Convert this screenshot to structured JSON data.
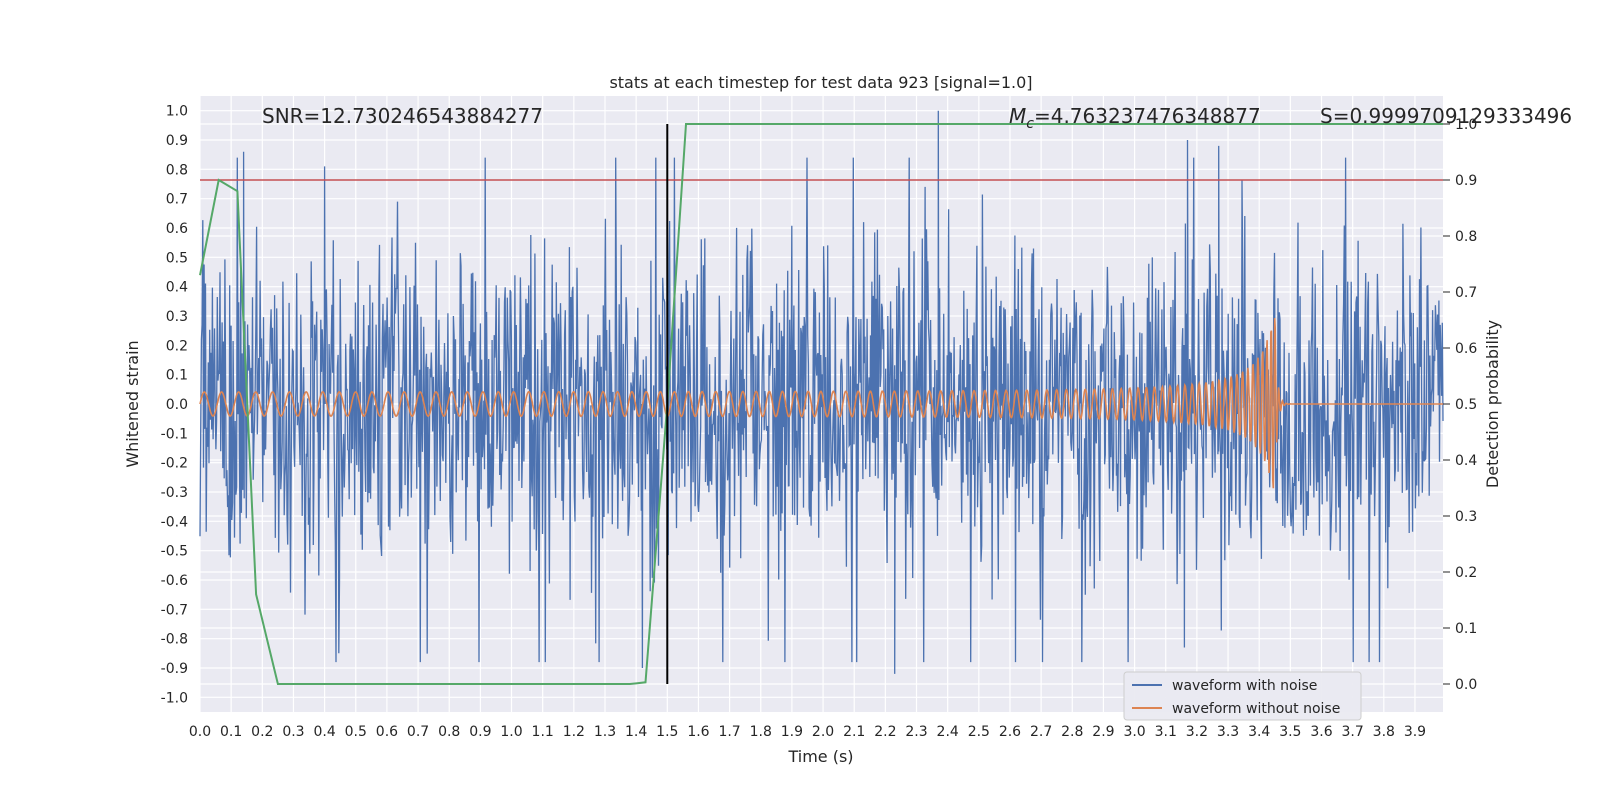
{
  "chart_data": {
    "type": "line",
    "title": "stats at each timestep for test data 923 [signal=1.0]",
    "xlabel": "Time (s)",
    "ylabel": "Whitened strain",
    "y2label": "Detection probability",
    "xlim": [
      0.0,
      3.99
    ],
    "ylim": [
      -1.05,
      1.05
    ],
    "y2lim": [
      -0.05,
      1.05
    ],
    "x_ticks": [
      "0.0",
      "0.1",
      "0.2",
      "0.3",
      "0.4",
      "0.5",
      "0.6",
      "0.7",
      "0.8",
      "0.9",
      "1.0",
      "1.1",
      "1.2",
      "1.3",
      "1.4",
      "1.5",
      "1.6",
      "1.7",
      "1.8",
      "1.9",
      "2.0",
      "2.1",
      "2.2",
      "2.3",
      "2.4",
      "2.5",
      "2.6",
      "2.7",
      "2.8",
      "2.9",
      "3.0",
      "3.1",
      "3.2",
      "3.3",
      "3.4",
      "3.5",
      "3.6",
      "3.7",
      "3.8",
      "3.9"
    ],
    "y_ticks": [
      "1.0",
      "0.9",
      "0.8",
      "0.7",
      "0.6",
      "0.5",
      "0.4",
      "0.3",
      "0.2",
      "0.1",
      "0.0",
      "-0.1",
      "-0.2",
      "-0.3",
      "-0.4",
      "-0.5",
      "-0.6",
      "-0.7",
      "-0.8",
      "-0.9",
      "-1.0"
    ],
    "y2_ticks": [
      "1.0",
      "0.9",
      "0.8",
      "0.7",
      "0.6",
      "0.5",
      "0.4",
      "0.3",
      "0.2",
      "0.1",
      "0.0"
    ],
    "grid": true,
    "legend_position": "bottom-right",
    "annotations": {
      "snr": "SNR=12.730246543884277",
      "mc_symbol": "M",
      "mc_subscript": "c",
      "mc_value": "=4.763237476348877",
      "s": "S=0.9999709129333496"
    },
    "series": [
      {
        "name": "waveform with noise",
        "color": "#4c72b0",
        "axis": "left",
        "kind": "noise",
        "peaks": [
          {
            "x": 0.14,
            "y": 0.86
          },
          {
            "x": 0.4,
            "y": 0.81
          },
          {
            "x": 2.37,
            "y": 1.0
          },
          {
            "x": 3.17,
            "y": 0.9
          },
          {
            "x": 3.27,
            "y": 0.88
          },
          {
            "x": 2.23,
            "y": -0.92
          },
          {
            "x": 1.42,
            "y": -0.9
          },
          {
            "x": 3.16,
            "y": -0.83
          }
        ]
      },
      {
        "name": "waveform without noise",
        "color": "#dd8452",
        "axis": "left",
        "kind": "chirp",
        "amplitude_start": 0.04,
        "amplitude_peak": 0.33,
        "merger_time": 3.45,
        "ringdown_end": 3.47
      },
      {
        "color": "#55a868",
        "axis": "right",
        "x": [
          0.0,
          0.06,
          0.12,
          0.18,
          0.25,
          0.5,
          1.0,
          1.25,
          1.38,
          1.43,
          1.5,
          1.56,
          2.0,
          3.0,
          3.99
        ],
        "y": [
          0.73,
          0.9,
          0.88,
          0.16,
          0.0,
          0.0,
          0.0,
          0.0,
          0.0,
          0.003,
          0.5,
          1.0,
          1.0,
          1.0,
          1.0
        ]
      }
    ],
    "threshold": {
      "axis": "right",
      "y": 0.9,
      "color": "#c44e52"
    },
    "marker_line": {
      "x": 1.5,
      "y_from": 0.0,
      "y_to": 1.0,
      "color": "#000000"
    }
  }
}
